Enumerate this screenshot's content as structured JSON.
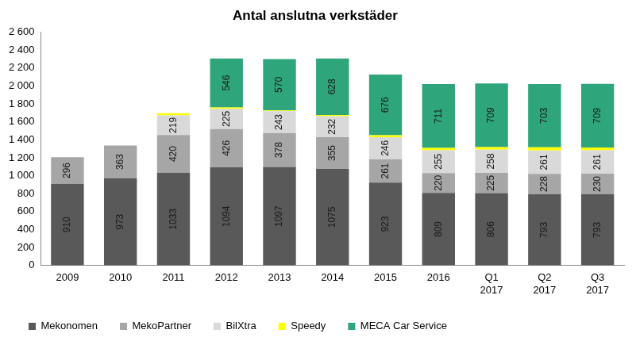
{
  "chart_data": {
    "type": "bar",
    "title": "Antal anslutna verkstäder",
    "stacked": true,
    "data_labels": true,
    "grid": false,
    "legend": "bottom",
    "categories": [
      "2009",
      "2010",
      "2011",
      "2012",
      "2013",
      "2014",
      "2015",
      "2016",
      "Q1 2017",
      "Q2 2017",
      "Q3 2017"
    ],
    "series": [
      {
        "name": "Mekonomen",
        "color": "#595959",
        "values": [
          910,
          973,
          1033,
          1094,
          1097,
          1075,
          923,
          809,
          806,
          793,
          793
        ]
      },
      {
        "name": "MekoPartner",
        "color": "#a6a6a6",
        "values": [
          296,
          363,
          420,
          426,
          378,
          355,
          261,
          220,
          225,
          228,
          230
        ]
      },
      {
        "name": "BilXtra",
        "color": "#d9d9d9",
        "values": [
          null,
          null,
          219,
          225,
          243,
          232,
          246,
          255,
          258,
          261,
          261
        ]
      },
      {
        "name": "Speedy",
        "color": "#ffff00",
        "data_labels": false,
        "values": [
          null,
          null,
          25,
          15,
          10,
          15,
          20,
          25,
          30,
          35,
          30
        ]
      },
      {
        "name": "MECA Car Service",
        "color": "#2ea57a",
        "values": [
          null,
          null,
          null,
          546,
          570,
          628,
          676,
          711,
          709,
          703,
          709
        ]
      }
    ],
    "ylim": [
      0,
      2600
    ],
    "yticks": [
      0,
      200,
      400,
      600,
      800,
      {
        "value": 1000,
        "label": "1 000"
      },
      {
        "value": 1200,
        "label": "1 200"
      },
      {
        "value": 1400,
        "label": "1 400"
      },
      {
        "value": 1600,
        "label": "1 600"
      },
      {
        "value": 1800,
        "label": "1 800"
      },
      {
        "value": 2000,
        "label": "2 000"
      },
      {
        "value": 2200,
        "label": "2 200"
      },
      {
        "value": 2400,
        "label": "2 400"
      },
      {
        "value": 2600,
        "label": "2 600"
      }
    ]
  }
}
